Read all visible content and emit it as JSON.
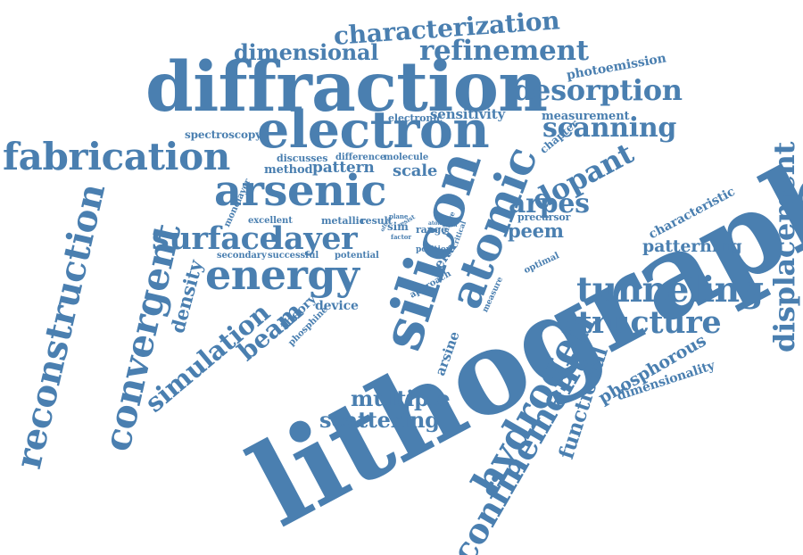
{
  "colors": {
    "word": "#4a7fb0",
    "background": "#ffffff"
  },
  "words": [
    "lithography",
    "diffraction",
    "electron",
    "silicon",
    "atomic",
    "arsenic",
    "reconstruction",
    "convergent",
    "fabrication",
    "characterization",
    "dimensional",
    "refinement",
    "desorption",
    "scanning",
    "dopant",
    "arpes",
    "energy",
    "surface",
    "layer",
    "hydrogen",
    "confinement",
    "tunneling",
    "structure",
    "displacement",
    "simulation",
    "beam",
    "density",
    "multiple",
    "scattering",
    "functional",
    "phosphorous",
    "dimensionality",
    "patterning",
    "characteristic",
    "peem",
    "photoemission",
    "measurement",
    "sensitivity",
    "spectroscopy",
    "chapter",
    "electronic",
    "pattern",
    "method",
    "scale",
    "discusses",
    "difference",
    "molecule",
    "metallic",
    "result",
    "excellent",
    "monolayer",
    "secondary",
    "successful",
    "potential",
    "theory",
    "phosphine",
    "device",
    "delta",
    "arsine",
    "precursor",
    "approach",
    "optimal",
    "measure",
    "sim",
    "range",
    "position",
    "factor",
    "plane",
    "offer",
    "resist",
    "atom",
    "bond",
    "future",
    "critical"
  ]
}
